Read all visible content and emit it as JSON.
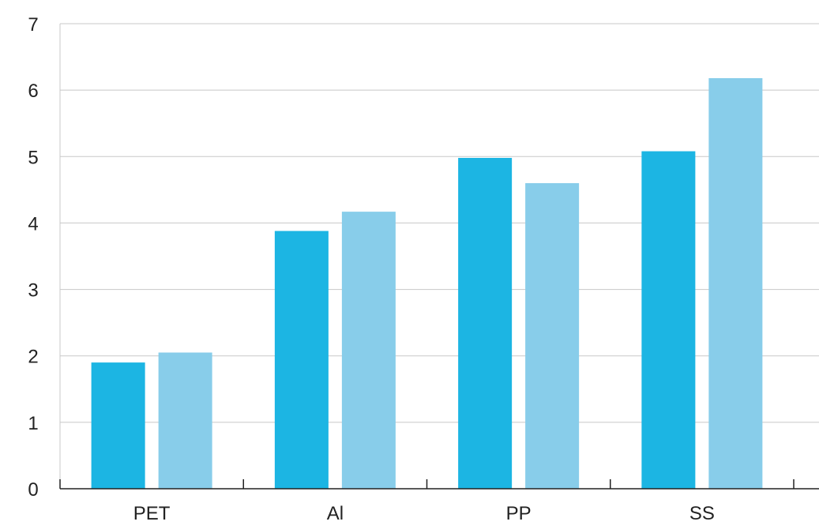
{
  "chart_data": {
    "type": "bar",
    "title": "",
    "xlabel": "",
    "ylabel": "",
    "categories": [
      "PET",
      "Al",
      "PP",
      "SS"
    ],
    "series": [
      {
        "values": [
          1.9,
          3.88,
          4.98,
          5.08
        ],
        "color": "#1cb5e3"
      },
      {
        "values": [
          2.05,
          4.17,
          4.6,
          6.18
        ],
        "color": "#88cdea"
      }
    ],
    "ylim": [
      0,
      7
    ],
    "yticks": [
      "0",
      "1",
      "2",
      "3",
      "4",
      "5",
      "6",
      "7"
    ],
    "grid": true,
    "legend": "none"
  }
}
